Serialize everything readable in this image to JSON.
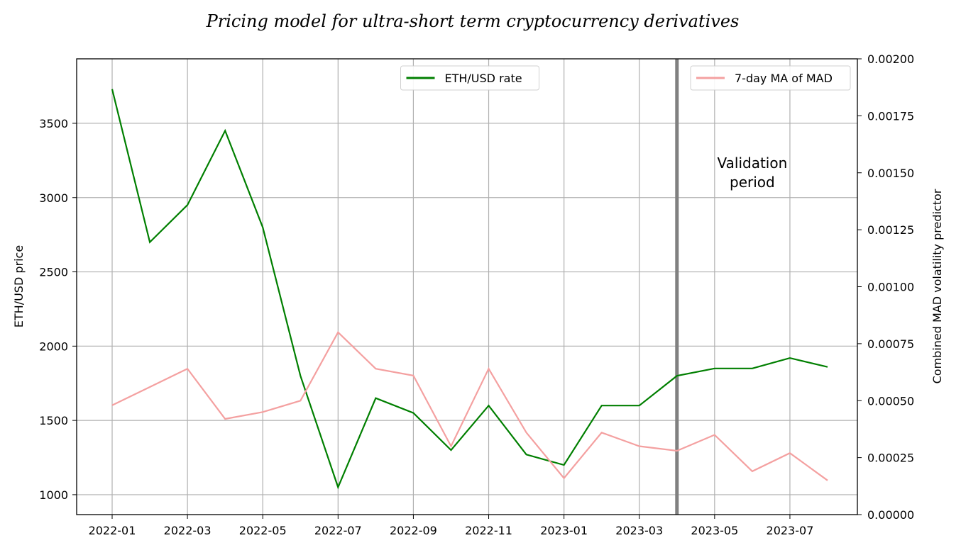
{
  "chart_data": {
    "type": "line",
    "title": "Pricing model for ultra-short term cryptocurrency derivatives",
    "y_label": "ETH/USD price",
    "y2_label": "Combined MAD volatility predictor",
    "x": [
      "2022-01",
      "2022-02",
      "2022-03",
      "2022-04",
      "2022-05",
      "2022-06",
      "2022-07",
      "2022-08",
      "2022-09",
      "2022-10",
      "2022-11",
      "2022-12",
      "2023-01",
      "2023-02",
      "2023-03",
      "2023-04",
      "2023-05",
      "2023-06",
      "2023-07",
      "2023-08"
    ],
    "xlim": [
      "2022-01",
      "2023-08"
    ],
    "xticks": [
      "2022-01",
      "2022-03",
      "2022-05",
      "2022-07",
      "2022-09",
      "2022-11",
      "2023-01",
      "2023-03",
      "2023-05",
      "2023-07"
    ],
    "ylim": [
      866,
      3934
    ],
    "yticks": [
      1000,
      1500,
      2000,
      2500,
      3000,
      3500
    ],
    "y2lim": [
      0,
      0.002
    ],
    "y2ticks": [
      {
        "value": 0,
        "label": "0.00000"
      },
      {
        "value": 0.00025,
        "label": "0.00025"
      },
      {
        "value": 0.0005,
        "label": "0.00050"
      },
      {
        "value": 0.00075,
        "label": "0.00075"
      },
      {
        "value": 0.001,
        "label": "0.00100"
      },
      {
        "value": 0.00125,
        "label": "0.00125"
      },
      {
        "value": 0.0015,
        "label": "0.00150"
      },
      {
        "value": 0.00175,
        "label": "0.00175"
      },
      {
        "value": 0.002,
        "label": "0.00200"
      }
    ],
    "grid": true,
    "series": [
      {
        "name": "ETH/USD rate",
        "color": "#007f00",
        "axis": "y",
        "legend": "upper center",
        "values": [
          3730,
          2700,
          2950,
          3450,
          2800,
          1800,
          1050,
          1650,
          1550,
          1300,
          1600,
          1270,
          1200,
          1600,
          1600,
          1800,
          1850,
          1850,
          1920,
          1860
        ]
      },
      {
        "name": "7-day MA of MAD",
        "color": "#f4a0a0",
        "axis": "y2",
        "legend": "upper right",
        "values": [
          0.00048,
          0.00056,
          0.00064,
          0.00042,
          0.00045,
          0.0005,
          0.0008,
          0.00064,
          0.00061,
          0.0003,
          0.00064,
          0.00036,
          0.00016,
          0.00036,
          0.0003,
          0.00028,
          0.00035,
          0.00019,
          0.00027,
          0.00015
        ]
      }
    ],
    "vline": {
      "x": "2023-04",
      "color": "#808080"
    },
    "annotation": {
      "x": "2023-06",
      "lines": [
        "Validation",
        "period"
      ]
    }
  }
}
